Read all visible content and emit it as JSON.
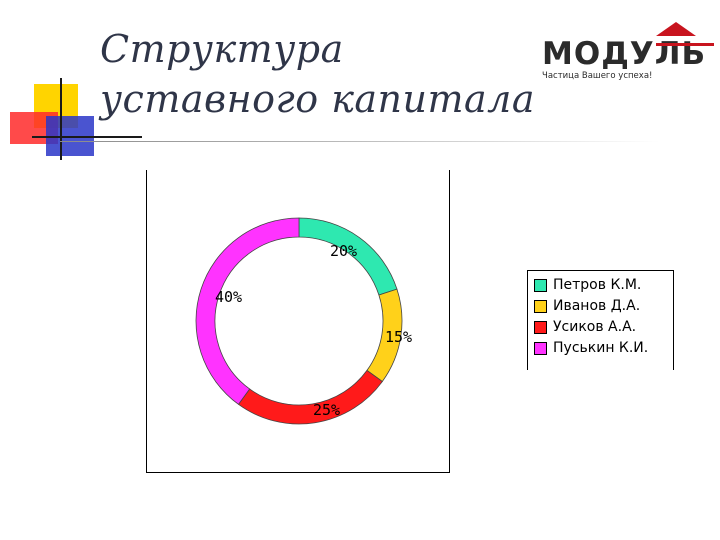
{
  "slide": {
    "title": "Структура уставного капитала"
  },
  "logo": {
    "name": "МОДУЛЬ",
    "tagline": "Частица Вашего успеха!"
  },
  "chart_data": {
    "type": "pie",
    "variant": "doughnut",
    "title": "",
    "labels": [
      "Петров К.М.",
      "Иванов Д.А.",
      "Усиков А.А.",
      "Пуськин К.И."
    ],
    "values": [
      20,
      15,
      25,
      40
    ],
    "value_labels": [
      "20%",
      "15%",
      "25%",
      "40%"
    ],
    "colors": [
      "#2ee8b0",
      "#ffd11a",
      "#ff1a1a",
      "#ff33ff"
    ],
    "legend_position": "right",
    "start_angle": "top, clockwise"
  }
}
